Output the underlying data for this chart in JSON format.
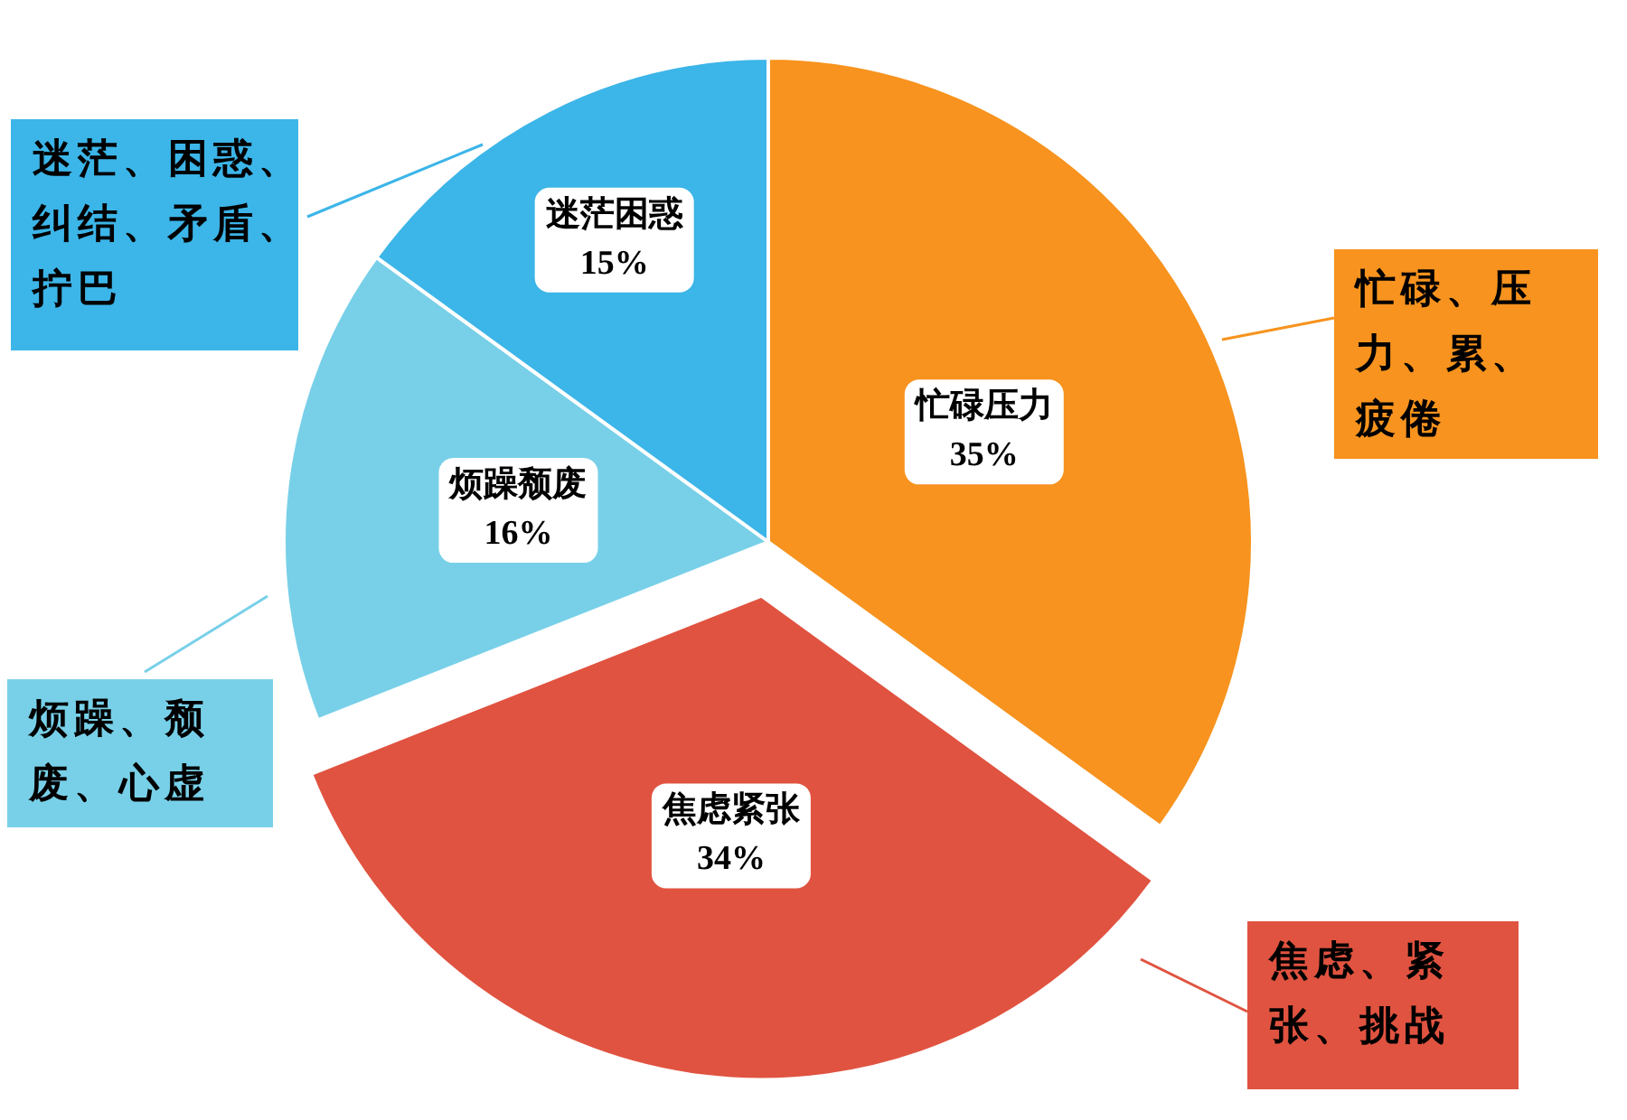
{
  "chart_data": {
    "type": "pie",
    "categories": [
      "忙碌压力",
      "焦虑紧张",
      "烦躁颓废",
      "迷茫困惑"
    ],
    "values": [
      35,
      34,
      16,
      15
    ],
    "colors": [
      "#f7931e",
      "#e05340",
      "#78d0e8",
      "#3cb5e8"
    ],
    "value_labels": [
      "35%",
      "34%",
      "16%",
      "15%"
    ],
    "annotations": [
      "忙碌、压力、累、疲倦",
      "焦虑、紧张、挑战",
      "烦躁、颓废、心虚",
      "迷茫、困惑、纠结、矛盾、拧巴"
    ]
  }
}
